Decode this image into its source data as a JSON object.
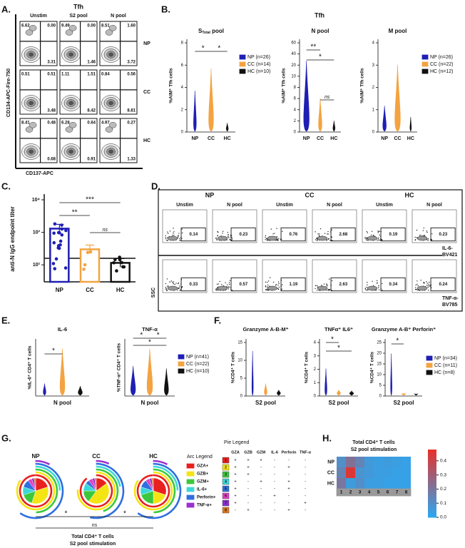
{
  "panel_labels": [
    "A.",
    "B.",
    "C.",
    "D.",
    "E.",
    "F.",
    "G.",
    "H."
  ],
  "group_colors": [
    "#1f1fb4",
    "#f4a340",
    "#111111"
  ],
  "panel_a": {
    "title": "Tfh",
    "columns": [
      "Unstim",
      "S2 pool",
      "N pool"
    ],
    "rows": [
      "NP",
      "CC",
      "HC"
    ],
    "y_label": "CD134-APC-Fire-750",
    "x_label": "CD137-APC",
    "quadrants": [
      [
        [
          "6.62",
          "0.00",
          "3.31"
        ],
        [
          "9.49",
          "0.00",
          "1.46"
        ],
        [
          "8.51",
          "1.60",
          "3.72"
        ]
      ],
      [
        [
          "0.51",
          "0.51",
          "3.48"
        ],
        [
          "1.11",
          "1.51",
          "8.42"
        ],
        [
          "0.84",
          "0.56",
          "8.81"
        ]
      ],
      [
        [
          "8.41",
          "0.48",
          "0.68"
        ],
        [
          "6.28",
          "0.64",
          "0.91"
        ],
        [
          "4.97",
          "0.27",
          "1.33"
        ]
      ]
    ]
  },
  "panel_b": {
    "title": "Tfh",
    "categories": [
      "NP",
      "CC",
      "HC"
    ],
    "y_label": "%AIM⁺ Tfh cells",
    "plots": [
      {
        "title": "S",
        "title_subscript": "Total",
        "title_suffix": " pool",
        "yticks": [
          "0",
          "2",
          "4",
          "6",
          "8"
        ],
        "annotations": [
          "*",
          "*"
        ]
      },
      {
        "title": "N pool",
        "yticks": [
          "0",
          "2",
          "4",
          "6",
          "8",
          "10",
          "20",
          "40",
          "60"
        ],
        "annotations": [
          "**",
          "*",
          "ns"
        ]
      },
      {
        "title": "M pool",
        "yticks": [
          "0",
          "1",
          "2",
          "3",
          "4"
        ],
        "annotations": []
      }
    ],
    "legends": [
      [
        "NP (n=26)",
        "CC (n=14)",
        "HC (n=10)"
      ],
      [
        "NP (n=26)",
        "CC (n=22)",
        "HC (n=12)"
      ]
    ]
  },
  "panel_c": {
    "y_label": "anti-N IgG endpoint titer",
    "categories": [
      "NP",
      "CC",
      "HC"
    ],
    "values": [
      1300,
      300,
      115
    ],
    "ylim": [
      30,
      15000
    ],
    "log_scale": true,
    "yticks": [
      {
        "value": 100,
        "label": "10²"
      },
      {
        "value": 1000,
        "label": "10³"
      },
      {
        "value": 10000,
        "label": "10⁴"
      }
    ],
    "annotations": [
      "***",
      "**",
      "ns"
    ]
  },
  "panel_d": {
    "groups": [
      "NP",
      "CC",
      "HC"
    ],
    "columns": [
      "Unstim",
      "N pool"
    ],
    "values": [
      [
        "0.14",
        "0.23",
        "0.76",
        "2.68",
        "0.19",
        "0.23"
      ],
      [
        "0.33",
        "0.57",
        "1.19",
        "2.63",
        "0.34",
        "0.24"
      ]
    ],
    "row_labels": [
      [
        "IL-6-",
        "BV421"
      ],
      [
        "TNF-α-",
        "BV785"
      ]
    ],
    "y_label": "SSC"
  },
  "panel_e": {
    "plots": [
      {
        "title": "IL-6",
        "y_label": "%IL-6⁺ CD4⁺ T cells",
        "annotations": [
          "*"
        ]
      },
      {
        "title": "TNF-α",
        "y_label": "%TNF-α⁺ CD4⁺ T cells",
        "annotations": [
          "*",
          "*",
          "*"
        ]
      }
    ],
    "x_label": "N pool",
    "legend": [
      "NP (n=41)",
      "CC (n=22)",
      "HC (n=10)"
    ]
  },
  "panel_f": {
    "plots": [
      {
        "title": "Granzyme A-B-M⁺",
        "yticks": [
          "0",
          "5",
          "10",
          "15"
        ],
        "annotations": []
      },
      {
        "title": "TNFα⁺ IL6⁺",
        "yticks": [
          "0",
          "1",
          "2",
          "3",
          "4"
        ],
        "annotations": [
          "*",
          "*"
        ]
      },
      {
        "title": "Granzyme A-B⁺ Perforin⁺",
        "yticks": [
          "0",
          "5",
          "10",
          "15",
          "20",
          "25"
        ],
        "annotations": [
          "*"
        ]
      }
    ],
    "y_label": "%CD4⁺ T cells",
    "x_label": "S2 pool",
    "legend": [
      "NP (n=34)",
      "CC (n=11)",
      "HC (n=8)"
    ]
  },
  "panel_g": {
    "groups": [
      "NP",
      "CC",
      "HC"
    ],
    "arc_legend_title": "Arc Legend",
    "arc_legend": [
      "GZA+",
      "GZB+",
      "GZM+",
      "IL-6+",
      "Perforin+",
      "TNF-α+"
    ],
    "arc_colors": [
      "#e8201e",
      "#f5e414",
      "#3cc83c",
      "#3cd8d8",
      "#2f6fe0",
      "#9c2fd0"
    ],
    "pie_legend_title": "Pie Legend",
    "pie_columns": [
      "GZA",
      "GZB",
      "GZM",
      "IL-6",
      "Perforin",
      "TNF-α"
    ],
    "pie_rows": [
      {
        "number": "1",
        "signs": [
          "+",
          "+",
          "+",
          "-",
          "-",
          "-"
        ]
      },
      {
        "number": "2",
        "signs": [
          "+",
          "+",
          "-",
          "-",
          "+",
          "-"
        ]
      },
      {
        "number": "3",
        "signs": [
          "+",
          "+",
          "-",
          "-",
          "-",
          "-"
        ]
      },
      {
        "number": "4",
        "signs": [
          "+",
          "-",
          "+",
          "-",
          "+",
          "-"
        ]
      },
      {
        "number": "5",
        "signs": [
          "+",
          "-",
          "-",
          "-",
          "+",
          "-"
        ]
      },
      {
        "number": "6",
        "signs": [
          "+",
          "-",
          "-",
          "+",
          "-",
          "-"
        ]
      },
      {
        "number": "7",
        "signs": [
          "+",
          "-",
          "-",
          "-",
          "-",
          "+"
        ]
      },
      {
        "number": "8",
        "signs": [
          "-",
          "+",
          "-",
          "-",
          "+",
          "-"
        ]
      }
    ],
    "pie_colors": [
      "#e8201e",
      "#f5e414",
      "#3cc83c",
      "#3cd8d8",
      "#2f6fe0",
      "#e040c0",
      "#8a2fd0",
      "#e07a20"
    ],
    "annotations": [
      "*",
      "ns",
      "*"
    ],
    "footer": [
      "Total CD4⁺ T cells",
      "S2 pool stimulation"
    ]
  },
  "panel_h": {
    "title": [
      "Total CD4⁺ T cells",
      "S2 pool stimulation"
    ],
    "rows": [
      "NP",
      "CC",
      "HC"
    ],
    "columns": [
      "1",
      "2",
      "3",
      "4",
      "5",
      "6",
      "7",
      "8"
    ],
    "values": [
      [
        0.1,
        0.22,
        0.15,
        0.06,
        0.04,
        0.05,
        0.04,
        0.03
      ],
      [
        0.15,
        0.45,
        0.08,
        0.06,
        0.04,
        0.04,
        0.03,
        0.03
      ],
      [
        0.2,
        0.05,
        0.1,
        0.04,
        0.04,
        0.03,
        0.03,
        0.03
      ]
    ],
    "zlim": [
      0,
      0.48
    ],
    "low_color": "#2aa8f2",
    "high_color": "#e8302a",
    "zticks": [
      {
        "value": 0,
        "label": "0.0"
      },
      {
        "value": 0.1,
        "label": "0.1"
      },
      {
        "value": 0.2,
        "label": "0.2"
      },
      {
        "value": 0.3,
        "label": "0.3"
      },
      {
        "value": 0.4,
        "label": "0.4"
      }
    ]
  }
}
